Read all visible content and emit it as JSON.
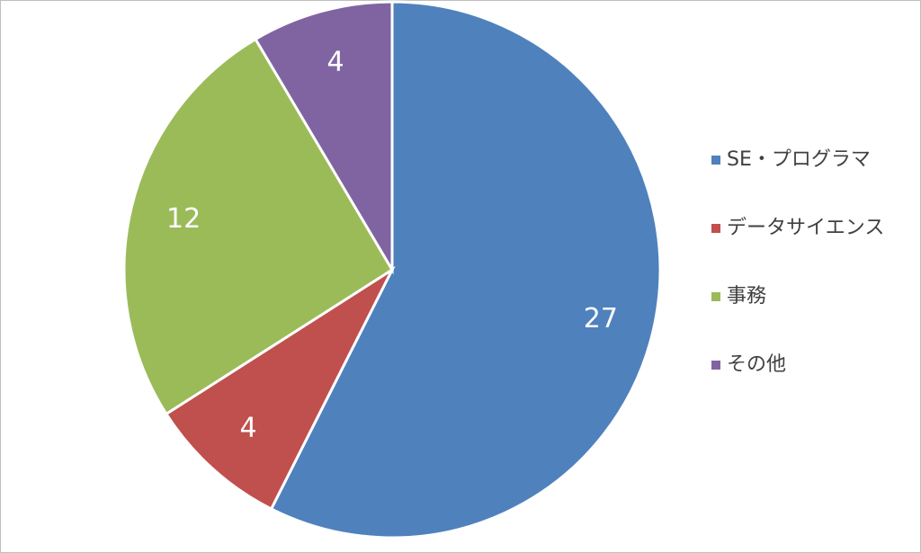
{
  "chart_data": {
    "type": "pie",
    "categories": [
      "SE・プログラマ",
      "データサイエンス",
      "事務",
      "その他"
    ],
    "values": [
      27,
      4,
      12,
      4
    ],
    "colors": [
      "#4f81bd",
      "#c0504d",
      "#9bbb59",
      "#8064a2"
    ],
    "legend": "right"
  }
}
